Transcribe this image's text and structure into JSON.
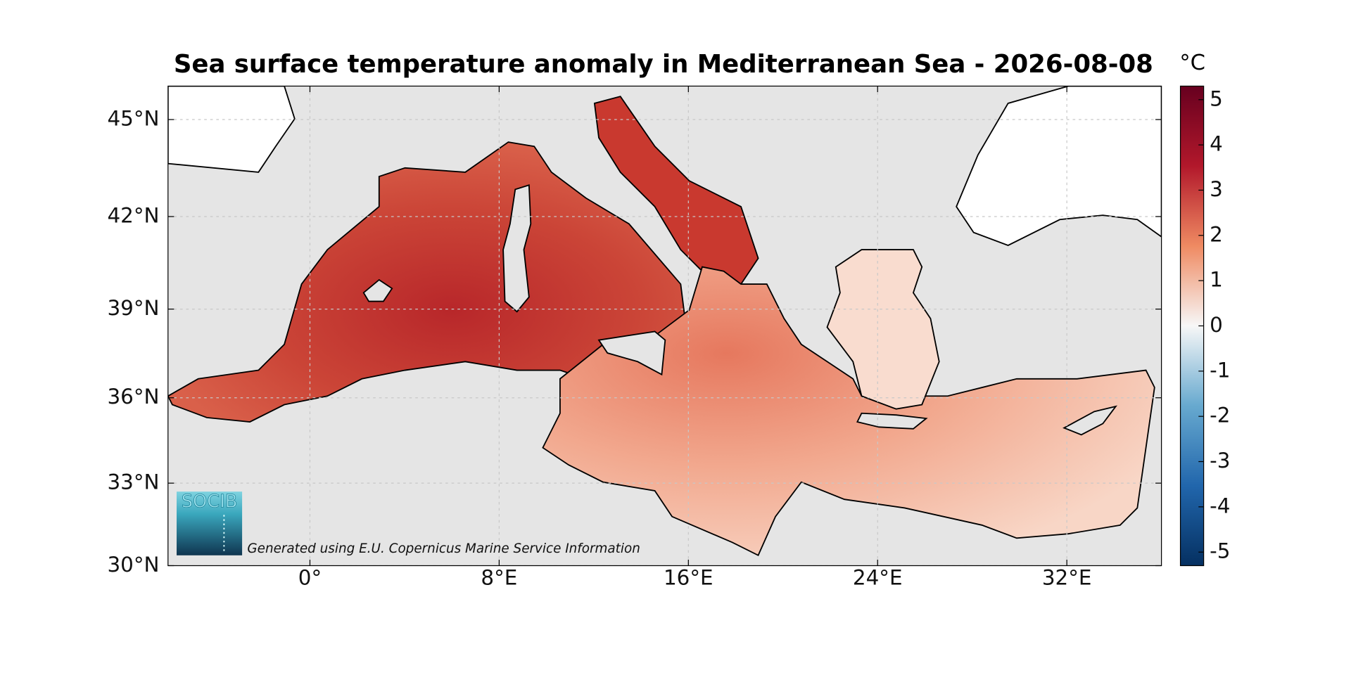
{
  "map": {
    "title": "Sea surface temperature anomaly in Mediterranean Sea - 2026-08-08",
    "projection": "mercator",
    "xlim": [
      -6,
      36
    ],
    "ylim": [
      30,
      46
    ],
    "xticks": [
      {
        "value": 0,
        "label": "0°"
      },
      {
        "value": 8,
        "label": "8°E"
      },
      {
        "value": 16,
        "label": "16°E"
      },
      {
        "value": 24,
        "label": "24°E"
      },
      {
        "value": 32,
        "label": "32°E"
      }
    ],
    "yticks": [
      {
        "value": 30,
        "label": "30°N"
      },
      {
        "value": 33,
        "label": "33°N"
      },
      {
        "value": 36,
        "label": "36°N"
      },
      {
        "value": 39,
        "label": "39°N"
      },
      {
        "value": 42,
        "label": "42°N"
      },
      {
        "value": 45,
        "label": "45°N"
      }
    ],
    "grid": true,
    "colorbar": {
      "unit": "°C",
      "lim": [
        -5.3,
        5.3
      ],
      "ticks": [
        -5,
        -4,
        -3,
        -2,
        -1,
        0,
        1,
        2,
        3,
        4,
        5
      ],
      "colors": [
        "#053061",
        "#2166ac",
        "#67a9cf",
        "#f7f7f7",
        "#ef8a62",
        "#b2182b",
        "#67001f"
      ]
    },
    "credit": "Generated using E.U. Copernicus Marine Service Information",
    "logo": "SOCIB"
  }
}
